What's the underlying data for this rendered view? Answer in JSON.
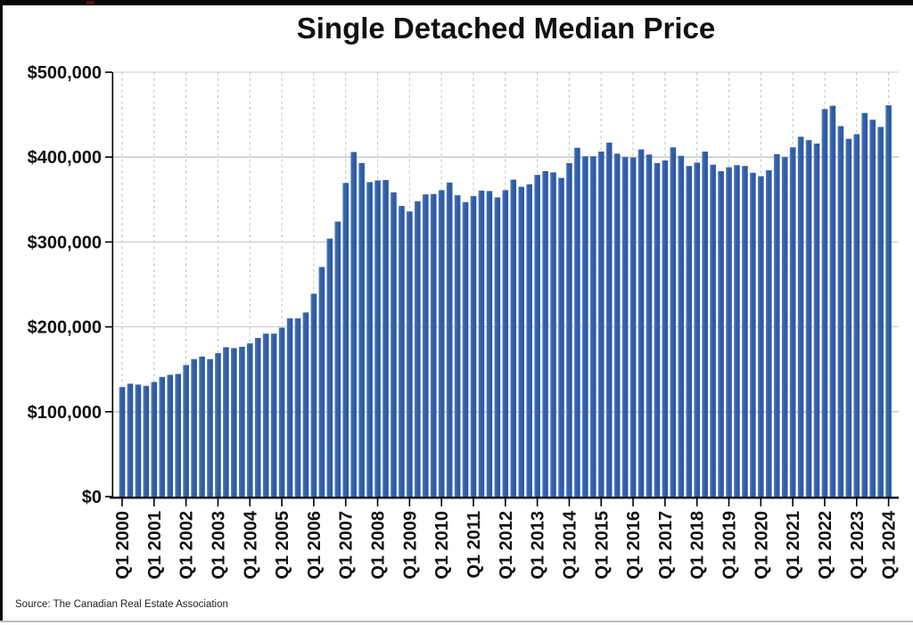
{
  "title": "Single Detached Median Price",
  "source_note": "Source: The Canadian Real Estate Association",
  "colors": {
    "bar": "#2f5fa8",
    "bar_edge_highlight": "#5379ba",
    "grid": "#c9c9c9",
    "axis": "#000000",
    "background": "#ffffff",
    "top_strip": "#060606"
  },
  "chart_data": {
    "type": "bar",
    "title": "Single Detached Median Price",
    "xlabel": "",
    "ylabel": "",
    "ylim": [
      0,
      500000
    ],
    "grid": {
      "horizontal": "solid",
      "vertical": "dashed"
    },
    "legend": null,
    "y_ticks": [
      0,
      100000,
      200000,
      300000,
      400000,
      500000
    ],
    "y_tick_labels": [
      "$0",
      "$100,000",
      "$200,000",
      "$300,000",
      "$400,000",
      "$500,000"
    ],
    "x_tick_every": 4,
    "x_tick_labels": [
      "Q1 2000",
      "Q1 2001",
      "Q1 2002",
      "Q1 2003",
      "Q1 2004",
      "Q1 2005",
      "Q1 2006",
      "Q1 2007",
      "Q1 2008",
      "Q1 2009",
      "Q1 2010",
      "Q1 2011",
      "Q1 2012",
      "Q1 2013",
      "Q1 2014",
      "Q1 2015",
      "Q1 2016",
      "Q1 2017",
      "Q1 2018",
      "Q1 2019",
      "Q1 2020",
      "Q1 2021",
      "Q1 2022",
      "Q1 2023",
      "Q1 2024"
    ],
    "categories": [
      "Q1 2000",
      "Q2 2000",
      "Q3 2000",
      "Q4 2000",
      "Q1 2001",
      "Q2 2001",
      "Q3 2001",
      "Q4 2001",
      "Q1 2002",
      "Q2 2002",
      "Q3 2002",
      "Q4 2002",
      "Q1 2003",
      "Q2 2003",
      "Q3 2003",
      "Q4 2003",
      "Q1 2004",
      "Q2 2004",
      "Q3 2004",
      "Q4 2004",
      "Q1 2005",
      "Q2 2005",
      "Q3 2005",
      "Q4 2005",
      "Q1 2006",
      "Q2 2006",
      "Q3 2006",
      "Q4 2006",
      "Q1 2007",
      "Q2 2007",
      "Q3 2007",
      "Q4 2007",
      "Q1 2008",
      "Q2 2008",
      "Q3 2008",
      "Q4 2008",
      "Q1 2009",
      "Q2 2009",
      "Q3 2009",
      "Q4 2009",
      "Q1 2010",
      "Q2 2010",
      "Q3 2010",
      "Q4 2010",
      "Q1 2011",
      "Q2 2011",
      "Q3 2011",
      "Q4 2011",
      "Q1 2012",
      "Q2 2012",
      "Q3 2012",
      "Q4 2012",
      "Q1 2013",
      "Q2 2013",
      "Q3 2013",
      "Q4 2013",
      "Q1 2014",
      "Q2 2014",
      "Q3 2014",
      "Q4 2014",
      "Q1 2015",
      "Q2 2015",
      "Q3 2015",
      "Q4 2015",
      "Q1 2016",
      "Q2 2016",
      "Q3 2016",
      "Q4 2016",
      "Q1 2017",
      "Q2 2017",
      "Q3 2017",
      "Q4 2017",
      "Q1 2018",
      "Q2 2018",
      "Q3 2018",
      "Q4 2018",
      "Q1 2019",
      "Q2 2019",
      "Q3 2019",
      "Q4 2019",
      "Q1 2020",
      "Q2 2020",
      "Q3 2020",
      "Q4 2020",
      "Q1 2021",
      "Q2 2021",
      "Q3 2021",
      "Q4 2021",
      "Q1 2022",
      "Q2 2022",
      "Q3 2022",
      "Q4 2022",
      "Q1 2023",
      "Q2 2023",
      "Q3 2023",
      "Q4 2023",
      "Q1 2024"
    ],
    "values": [
      129000,
      133000,
      132000,
      130500,
      135000,
      141000,
      143500,
      144500,
      155000,
      162000,
      165000,
      162000,
      169000,
      176000,
      175000,
      176500,
      180500,
      187000,
      192000,
      192000,
      199000,
      210000,
      210000,
      217000,
      239000,
      270500,
      304000,
      324000,
      369500,
      406000,
      393000,
      370500,
      372500,
      373000,
      358500,
      342500,
      336000,
      348000,
      356000,
      356500,
      361000,
      370000,
      355000,
      347000,
      354000,
      360500,
      360000,
      352500,
      361000,
      373500,
      365000,
      368000,
      379000,
      383500,
      382000,
      375500,
      393000,
      411000,
      401000,
      401000,
      406500,
      417000,
      404000,
      400000,
      399500,
      409000,
      403000,
      393000,
      396000,
      411500,
      401500,
      389500,
      393500,
      406500,
      391000,
      383500,
      388000,
      390500,
      389500,
      381500,
      377500,
      384500,
      403500,
      400000,
      411500,
      424000,
      420000,
      416000,
      456500,
      460500,
      436500,
      421500,
      427000,
      452000,
      444000,
      435500,
      461000
    ]
  }
}
